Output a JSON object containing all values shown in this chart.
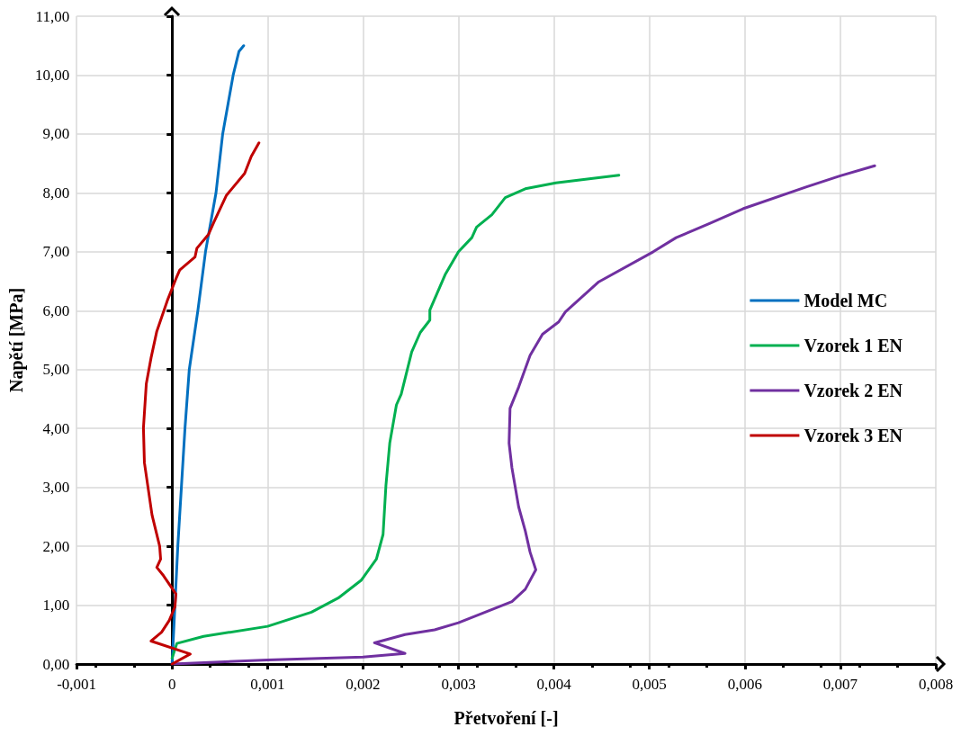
{
  "chart_data": {
    "type": "line",
    "xlabel": "Přetvoření [-]",
    "ylabel": "Napětí [MPa]",
    "xlim": [
      -0.001,
      0.008
    ],
    "xticks": [
      {
        "value": -0.001,
        "label": "-0,001"
      },
      {
        "value": 0,
        "label": "0"
      },
      {
        "value": 0.001,
        "label": "0,001"
      },
      {
        "value": 0.002,
        "label": "0,002"
      },
      {
        "value": 0.003,
        "label": "0,003"
      },
      {
        "value": 0.004,
        "label": "0,004"
      },
      {
        "value": 0.005,
        "label": "0,005"
      },
      {
        "value": 0.006,
        "label": "0,006"
      },
      {
        "value": 0.007,
        "label": "0,007"
      },
      {
        "value": 0.008,
        "label": "0,008"
      }
    ],
    "ylim": [
      0,
      11
    ],
    "yticks": [
      {
        "value": 0,
        "label": "0,00"
      },
      {
        "value": 1,
        "label": "1,00"
      },
      {
        "value": 2,
        "label": "2,00"
      },
      {
        "value": 3,
        "label": "3,00"
      },
      {
        "value": 4,
        "label": "4,00"
      },
      {
        "value": 5,
        "label": "5,00"
      },
      {
        "value": 6,
        "label": "6,00"
      },
      {
        "value": 7,
        "label": "7,00"
      },
      {
        "value": 8,
        "label": "8,00"
      },
      {
        "value": 9,
        "label": "9,00"
      },
      {
        "value": 10,
        "label": "10,00"
      },
      {
        "value": 11,
        "label": "11,00"
      }
    ],
    "grid": true,
    "legend": "right",
    "marker": "none",
    "line_style": "solid",
    "series": [
      {
        "name": "Model MC",
        "color": "#0070c0",
        "x": [
          0,
          3e-05,
          6e-05,
          0.000135,
          0.00018,
          0.00027,
          0.00035,
          0.00046,
          0.00053,
          0.00064,
          0.0007,
          0.00075
        ],
        "values": [
          0,
          1,
          2,
          4,
          5,
          6,
          7,
          8,
          9,
          10,
          10.4,
          10.5
        ]
      },
      {
        "name": "Vzorek 1 EN",
        "color": "#00b050",
        "x": [
          0,
          3e-05,
          5e-05,
          0.00033,
          0.001,
          0.00146,
          0.00174,
          0.00198,
          0.00214,
          0.00221,
          0.00224,
          0.00228,
          0.00235,
          0.0024,
          0.00251,
          0.0026,
          0.0027,
          0.0027,
          0.00286,
          0.003,
          0.00314,
          0.00319,
          0.00335,
          0.00349,
          0.0037,
          0.00402,
          0.00468
        ],
        "values": [
          0.1,
          0.25,
          0.35,
          0.47,
          0.64,
          0.88,
          1.12,
          1.42,
          1.78,
          2.2,
          3.03,
          3.75,
          4.4,
          4.58,
          5.3,
          5.63,
          5.84,
          6.01,
          6.61,
          7.0,
          7.24,
          7.42,
          7.63,
          7.92,
          8.07,
          8.17,
          8.3
        ]
      },
      {
        "name": "Vzorek 2 EN",
        "color": "#7030a0",
        "x": [
          0,
          0.001,
          0.002,
          0.00244,
          0.00212,
          0.00244,
          0.00275,
          0.003,
          0.00356,
          0.0037,
          0.00381,
          0.00375,
          0.0037,
          0.00363,
          0.00356,
          0.00353,
          0.00354,
          0.00363,
          0.00375,
          0.00388,
          0.00405,
          0.00412,
          0.00447,
          0.00504,
          0.00528,
          0.00563,
          0.00598,
          0.00664,
          0.007,
          0.00736
        ],
        "values": [
          0,
          0.07,
          0.12,
          0.18,
          0.36,
          0.5,
          0.58,
          0.7,
          1.06,
          1.27,
          1.6,
          1.9,
          2.26,
          2.67,
          3.33,
          3.75,
          4.34,
          4.7,
          5.24,
          5.6,
          5.81,
          5.98,
          6.49,
          7.0,
          7.24,
          7.48,
          7.73,
          8.1,
          8.29,
          8.46
        ]
      },
      {
        "name": "Vzorek 3 EN",
        "color": "#c00000",
        "x": [
          0,
          0.00019,
          -0.00022,
          -0.00011,
          -3e-05,
          3e-05,
          4e-05,
          -9e-05,
          -0.00016,
          -0.00012,
          -0.00013,
          -0.00021,
          -0.00029,
          -0.0003,
          -0.00027,
          -0.00022,
          -0.00016,
          -5e-05,
          4e-05,
          8e-05,
          0.00024,
          0.00026,
          0.00038,
          0.00044,
          0.00057,
          0.00076,
          0.00083,
          0.00091
        ],
        "values": [
          0,
          0.17,
          0.39,
          0.54,
          0.74,
          0.97,
          1.19,
          1.5,
          1.64,
          1.78,
          2.0,
          2.53,
          3.42,
          4.01,
          4.76,
          5.2,
          5.65,
          6.17,
          6.54,
          6.69,
          6.91,
          7.06,
          7.29,
          7.51,
          7.96,
          8.33,
          8.62,
          8.85
        ]
      }
    ]
  }
}
